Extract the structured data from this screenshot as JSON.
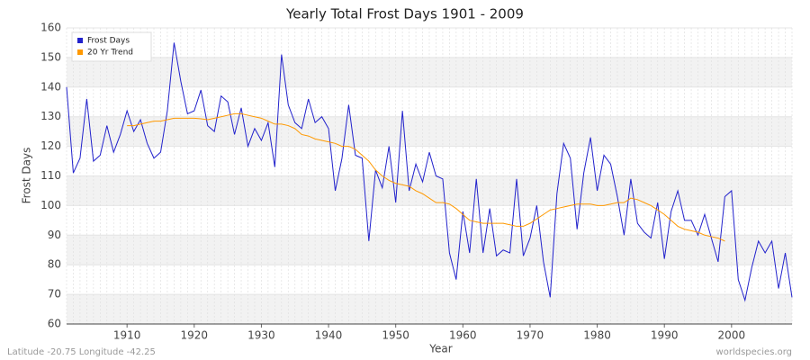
{
  "chart_data": {
    "type": "line",
    "title": "Yearly Total Frost Days 1901 - 2009",
    "x_label": "Year",
    "y_label": "Frost Days",
    "footer_left": "Latitude -20.75 Longitude -42.25",
    "footer_right": "worldspecies.org",
    "legend": "upper left",
    "grid": true,
    "xlim": [
      1901,
      2009
    ],
    "ylim": [
      60,
      160
    ],
    "xticks": [
      1910,
      1920,
      1930,
      1940,
      1950,
      1960,
      1970,
      1980,
      1990,
      2000
    ],
    "yticks": [
      60,
      70,
      80,
      90,
      100,
      110,
      120,
      130,
      140,
      150,
      160
    ],
    "x": [
      1901,
      1902,
      1903,
      1904,
      1905,
      1906,
      1907,
      1908,
      1909,
      1910,
      1911,
      1912,
      1913,
      1914,
      1915,
      1916,
      1917,
      1918,
      1919,
      1920,
      1921,
      1922,
      1923,
      1924,
      1925,
      1926,
      1927,
      1928,
      1929,
      1930,
      1931,
      1932,
      1933,
      1934,
      1935,
      1936,
      1937,
      1938,
      1939,
      1940,
      1941,
      1942,
      1943,
      1944,
      1945,
      1946,
      1947,
      1948,
      1949,
      1950,
      1951,
      1952,
      1953,
      1954,
      1955,
      1956,
      1957,
      1958,
      1959,
      1960,
      1961,
      1962,
      1963,
      1964,
      1965,
      1966,
      1967,
      1968,
      1969,
      1970,
      1971,
      1972,
      1973,
      1974,
      1975,
      1976,
      1977,
      1978,
      1979,
      1980,
      1981,
      1982,
      1983,
      1984,
      1985,
      1986,
      1987,
      1988,
      1989,
      1990,
      1991,
      1992,
      1993,
      1994,
      1995,
      1996,
      1997,
      1998,
      1999,
      2000,
      2001,
      2002,
      2003,
      2004,
      2005,
      2006,
      2007,
      2008,
      2009
    ],
    "series": [
      {
        "name": "Frost Days",
        "color": "#2222cc",
        "values": [
          140,
          111,
          116,
          136,
          115,
          117,
          127,
          118,
          124,
          132,
          125,
          129,
          121,
          116,
          118,
          132,
          155,
          142,
          131,
          132,
          139,
          127,
          125,
          137,
          135,
          124,
          133,
          120,
          126,
          122,
          128,
          113,
          151,
          134,
          128,
          126,
          136,
          128,
          130,
          126,
          105,
          116,
          134,
          117,
          116,
          88,
          112,
          106,
          120,
          101,
          132,
          105,
          114,
          108,
          118,
          110,
          109,
          84,
          75,
          98,
          84,
          109,
          84,
          99,
          83,
          85,
          84,
          109,
          83,
          89,
          100,
          81,
          69,
          104,
          121,
          116,
          92,
          111,
          123,
          105,
          117,
          114,
          103,
          90,
          109,
          94,
          91,
          89,
          101,
          82,
          98,
          105,
          95,
          95,
          90,
          97,
          89,
          81,
          103,
          105,
          75,
          68,
          79,
          88,
          84,
          88,
          72,
          84,
          69
        ]
      },
      {
        "name": "20 Yr Trend",
        "color": "#ff9900",
        "values": [
          null,
          null,
          null,
          null,
          null,
          null,
          null,
          null,
          null,
          127,
          127,
          127.5,
          128,
          128.5,
          128.5,
          129,
          129.5,
          129.5,
          129.5,
          129.5,
          129.3,
          129,
          129.5,
          130,
          130.5,
          131,
          131,
          130.5,
          130,
          129.5,
          128.5,
          127.5,
          127.5,
          127,
          126,
          124,
          123.5,
          122.5,
          122,
          121.5,
          121,
          120,
          120,
          119,
          117,
          115,
          112,
          110,
          108.5,
          107.5,
          107,
          106.5,
          105,
          104,
          102.5,
          101,
          101,
          100.5,
          99,
          97,
          95,
          94.5,
          94,
          94,
          94,
          94,
          93.5,
          93,
          93,
          94,
          95.5,
          97,
          98.5,
          99,
          99.5,
          100,
          100.5,
          100.5,
          100.5,
          100,
          100,
          100.5,
          101,
          101,
          102.5,
          102,
          101,
          100,
          98.5,
          97,
          95,
          93,
          92,
          91.5,
          91,
          90,
          89.5,
          89,
          88,
          null,
          null,
          null,
          null,
          null,
          null,
          null,
          null,
          null,
          null
        ]
      }
    ]
  }
}
